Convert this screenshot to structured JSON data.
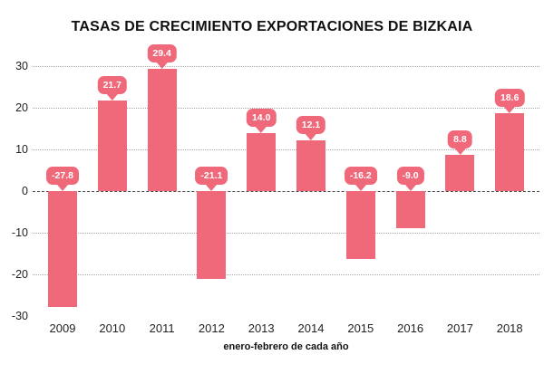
{
  "chart_data": {
    "type": "bar",
    "title": "TASAS DE CRECIMIENTO EXPORTACIONES DE BIZKAIA",
    "xlabel": "enero-febrero de cada año",
    "ylabel": "",
    "categories": [
      "2009",
      "2010",
      "2011",
      "2012",
      "2013",
      "2014",
      "2015",
      "2016",
      "2017",
      "2018"
    ],
    "values": [
      -27.8,
      21.7,
      29.4,
      -21.1,
      14.0,
      12.1,
      -16.2,
      -9.0,
      8.8,
      18.6
    ],
    "value_labels": [
      "-27.8",
      "21.7",
      "29.4",
      "-21.1",
      "14.0",
      "12.1",
      "-16.2",
      "-9.0",
      "8.8",
      "18.6"
    ],
    "ylim": [
      -30,
      30
    ],
    "yticks": [
      30,
      20,
      10,
      0,
      -10,
      -20,
      -30
    ],
    "grid": "horizontal dotted, dashed zero line, no gridline at -30",
    "legend": "none",
    "colors": {
      "bar": "#f0697b",
      "bubble_text": "#ffffff",
      "gridline": "#a8a8a8",
      "zero_line": "#4a4a4a",
      "title_text": "#111111",
      "axis_text": "#222222",
      "background": "#ffffff"
    }
  }
}
